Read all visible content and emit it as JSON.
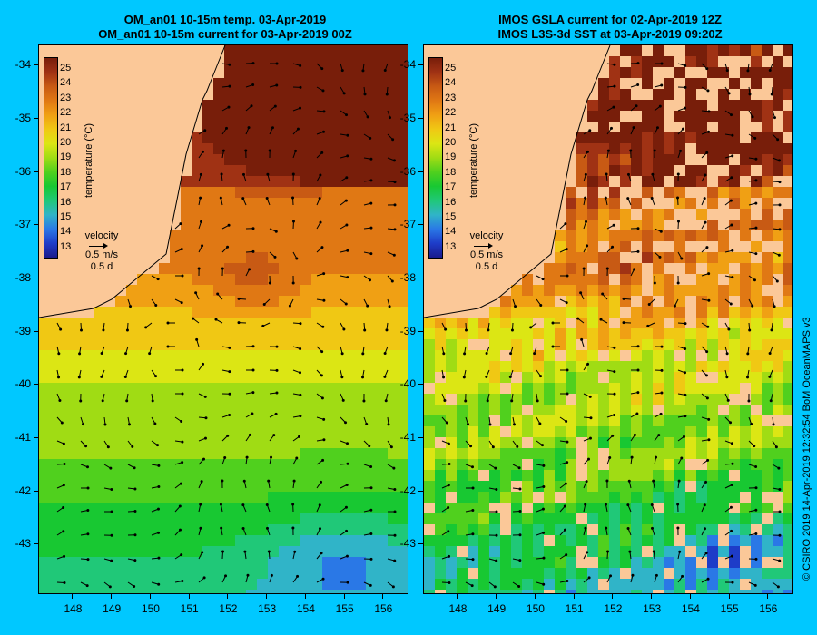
{
  "left_panel": {
    "title_line1": "OM_an01 10-15m temp. 03-Apr-2019",
    "title_line2": "OM_an01 10-15m current for 03-Apr-2019 00Z"
  },
  "right_panel": {
    "title_line1": "IMOS GSLA current for 02-Apr-2019 12Z",
    "title_line2": "IMOS L3S-3d SST at 03-Apr-2019 09:20Z"
  },
  "colorbar": {
    "title": "temperature (°C)",
    "ticks": [
      "25",
      "24",
      "23",
      "22",
      "21",
      "20",
      "19",
      "18",
      "17",
      "16",
      "15",
      "14",
      "13"
    ],
    "min": 13,
    "max": 25,
    "colors": [
      "#1a1a8c",
      "#1e3cc8",
      "#2a78e6",
      "#30b4c8",
      "#20c878",
      "#18c832",
      "#50d01e",
      "#a0dc14",
      "#dce614",
      "#f0c814",
      "#f0a014",
      "#e07814",
      "#c85a14",
      "#a03214",
      "#781e0a"
    ]
  },
  "velocity_legend": {
    "label": "velocity",
    "speed": "0.5 m/s",
    "time": "0.5 d"
  },
  "axes": {
    "lat_labels": [
      "-34",
      "-35",
      "-36",
      "-37",
      "-38",
      "-39",
      "-40",
      "-41",
      "-42",
      "-43"
    ],
    "lon_labels": [
      "148",
      "149",
      "150",
      "151",
      "152",
      "153",
      "154",
      "155",
      "156"
    ],
    "lat_range": [
      -33.6,
      -43.9
    ],
    "lon_range": [
      147.1,
      156.6
    ]
  },
  "credit": "© CSIRO 2019   14-Apr-2019 12:32:54 BoM OceanMAPS v3",
  "land_color": "#fbc898"
}
